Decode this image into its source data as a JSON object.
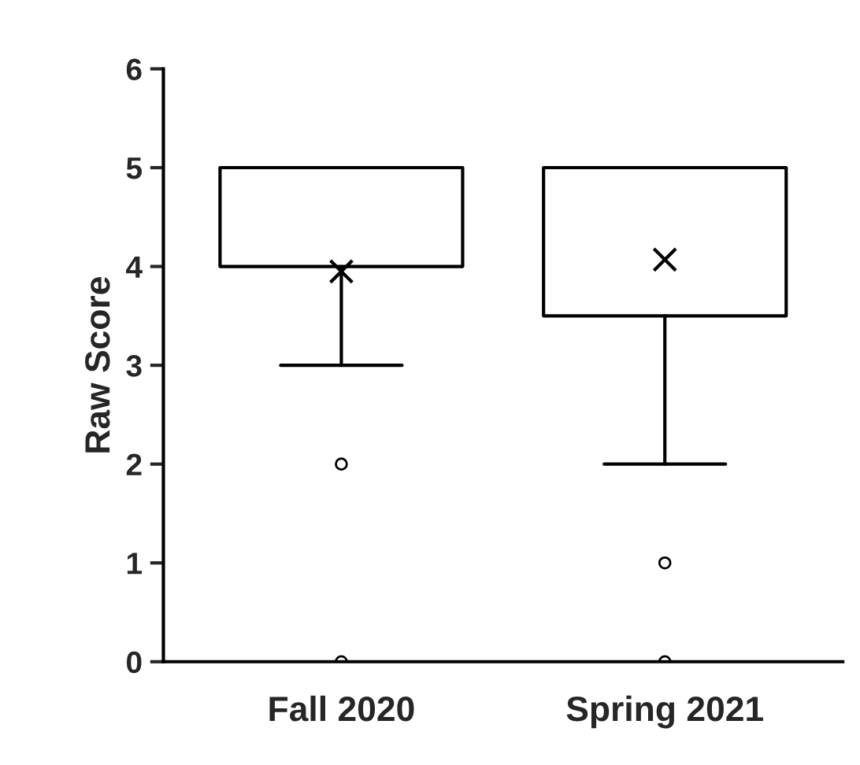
{
  "chart_data": {
    "type": "box",
    "ylabel": "Raw Score",
    "categories": [
      "Fall 2020",
      "Spring 2021"
    ],
    "boxes": [
      {
        "low": 3,
        "q1": 4,
        "median": 5,
        "q3": 5,
        "high": 5,
        "mean": 3.95,
        "outliers": [
          2,
          0
        ]
      },
      {
        "low": 2,
        "q1": 3.5,
        "median": 5,
        "q3": 5,
        "high": 5,
        "mean": 4.07,
        "outliers": [
          1,
          0
        ]
      }
    ],
    "ylim": [
      0,
      6
    ],
    "yticks": [
      0,
      1,
      2,
      3,
      4,
      5,
      6
    ],
    "grid": false
  }
}
